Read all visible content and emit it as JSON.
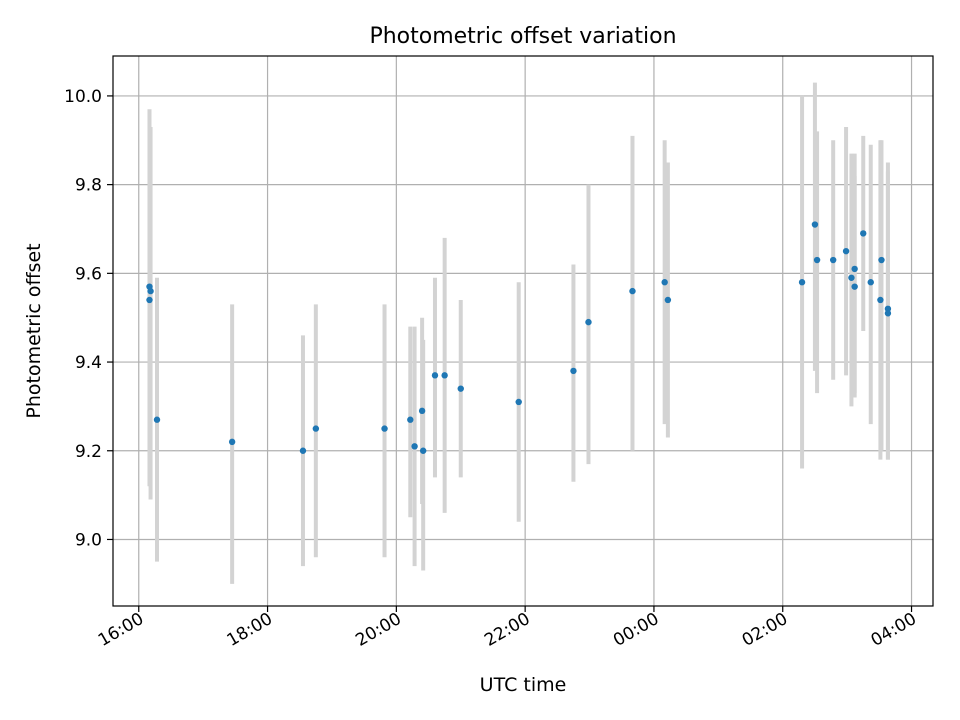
{
  "chart_data": {
    "type": "scatter",
    "title": "Photometric offset variation",
    "xlabel": "UTC time",
    "ylabel": "Photometric offset",
    "grid": true,
    "legend": "none",
    "colors": {
      "marker": "#1f77b4",
      "errorbar": "#d3d3d3",
      "grid": "#b0b0b0"
    },
    "x_ticks": [
      "16:00",
      "18:00",
      "20:00",
      "22:00",
      "00:00",
      "02:00",
      "04:00"
    ],
    "y_ticks": [
      "9.0",
      "9.2",
      "9.4",
      "9.6",
      "9.8",
      "10.0"
    ],
    "xlim": [
      "15:36",
      "04:20"
    ],
    "ylim": [
      8.85,
      10.09
    ],
    "series": [
      {
        "x": [
          "16:10",
          "16:10",
          "16:11",
          "16:17",
          "17:27",
          "18:33",
          "18:45",
          "19:49",
          "20:13",
          "20:17",
          "20:24",
          "20:25",
          "20:36",
          "20:45",
          "21:00",
          "21:54",
          "22:45",
          "22:59",
          "23:40",
          "00:10",
          "00:13",
          "02:18",
          "02:30",
          "02:32",
          "02:47",
          "02:59",
          "03:04",
          "03:07",
          "03:07",
          "03:15",
          "03:22",
          "03:31",
          "03:32",
          "03:38",
          "03:38"
        ],
        "y": [
          9.57,
          9.54,
          9.56,
          9.27,
          9.22,
          9.2,
          9.25,
          9.25,
          9.27,
          9.21,
          9.29,
          9.2,
          9.37,
          9.37,
          9.34,
          9.31,
          9.38,
          9.49,
          9.56,
          9.58,
          9.54,
          9.58,
          9.71,
          9.63,
          9.63,
          9.65,
          9.59,
          9.57,
          9.61,
          9.69,
          9.58,
          9.54,
          9.63,
          9.52,
          9.51
        ],
        "y_low": [
          9.12,
          9.14,
          9.09,
          8.95,
          8.9,
          8.94,
          8.96,
          8.96,
          9.05,
          8.94,
          9.08,
          8.93,
          9.14,
          9.06,
          9.14,
          9.04,
          9.13,
          9.17,
          9.2,
          9.26,
          9.23,
          9.16,
          9.38,
          9.33,
          9.36,
          9.37,
          9.3,
          9.32,
          9.33,
          9.47,
          9.26,
          9.18,
          9.2,
          9.18,
          9.18
        ],
        "y_high": [
          9.97,
          9.92,
          9.93,
          9.59,
          9.53,
          9.46,
          9.53,
          9.53,
          9.48,
          9.48,
          9.5,
          9.45,
          9.59,
          9.68,
          9.54,
          9.58,
          9.62,
          9.8,
          9.91,
          9.9,
          9.85,
          10.0,
          10.03,
          9.92,
          9.9,
          9.93,
          9.87,
          9.82,
          9.87,
          9.91,
          9.89,
          9.9,
          9.9,
          9.85,
          9.83
        ]
      }
    ]
  }
}
